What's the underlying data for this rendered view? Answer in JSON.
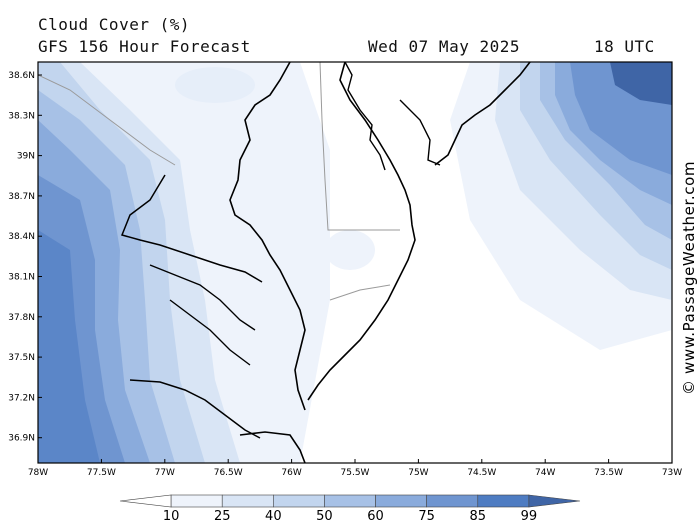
{
  "header": {
    "title": "Cloud Cover (%)",
    "model": "GFS 156 Hour Forecast",
    "date": "Wed 07 May 2025",
    "time": "18 UTC"
  },
  "axes": {
    "lat_labels": [
      "38.6N",
      "38.3N",
      "39N",
      "38.7N",
      "38.4N",
      "38.1N",
      "37.8N",
      "37.5N",
      "37.2N",
      "36.9N"
    ],
    "lon_labels": [
      "78W",
      "77.5W",
      "77W",
      "76.5W",
      "76W",
      "75.5W",
      "75W",
      "74.5W",
      "74W",
      "73.5W",
      "73W"
    ]
  },
  "colorbar": {
    "labels": [
      "10",
      "25",
      "40",
      "50",
      "60",
      "75",
      "85",
      "99"
    ],
    "colors": [
      "#ffffff",
      "#eef3fb",
      "#d9e5f5",
      "#c2d5ee",
      "#a7c1e6",
      "#8aabdc",
      "#6f95d0",
      "#4e7cc2",
      "#3f65a6"
    ]
  },
  "watermark": "© www.PassageWeather.com",
  "colors": {
    "frame": "#000000",
    "land_line": "#000000",
    "border_line": "#9a9a9a"
  }
}
